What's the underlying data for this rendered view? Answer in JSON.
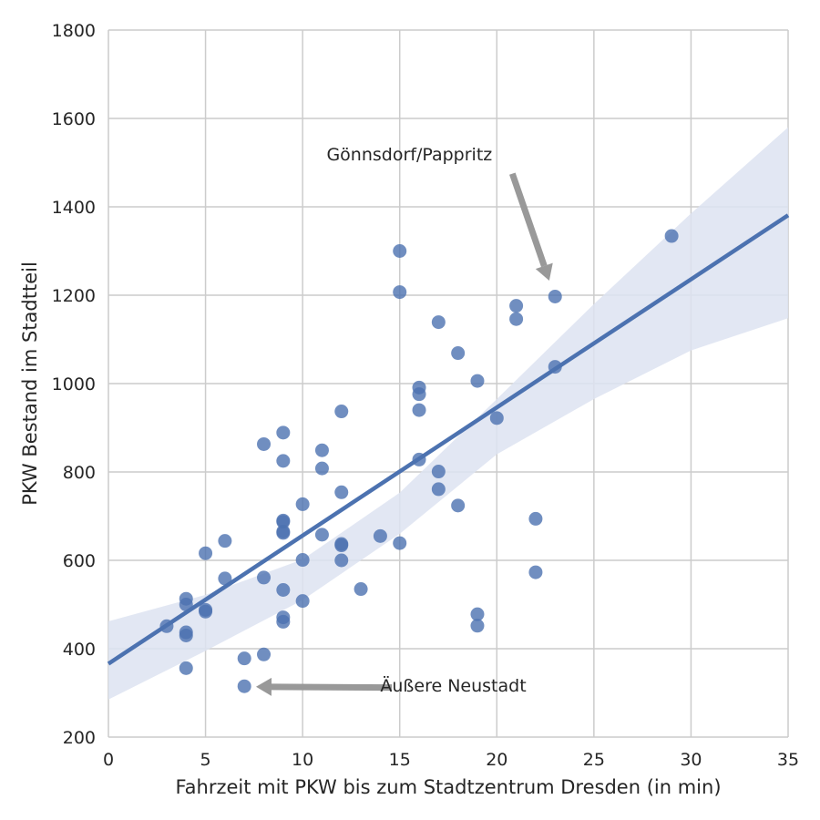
{
  "chart_data": {
    "type": "scatter",
    "title": "",
    "xlabel": "Fahrzeit mit PKW bis zum Stadtzentrum Dresden (in min)",
    "ylabel": "PKW Bestand im Stadtteil",
    "xlim": [
      0,
      35
    ],
    "ylim": [
      200,
      1800
    ],
    "xticks": [
      0,
      5,
      10,
      15,
      20,
      25,
      30,
      35
    ],
    "yticks": [
      200,
      400,
      600,
      800,
      1000,
      1200,
      1400,
      1600,
      1800
    ],
    "grid": true,
    "colors": {
      "points": "#4c72b0",
      "line": "#4c72b0",
      "band": "#dde3f1",
      "arrow": "#999999",
      "grid": "#cccccc",
      "text": "#262626"
    },
    "points": [
      {
        "x": 3,
        "y": 451
      },
      {
        "x": 4,
        "y": 513
      },
      {
        "x": 4,
        "y": 500
      },
      {
        "x": 4,
        "y": 437
      },
      {
        "x": 4,
        "y": 430
      },
      {
        "x": 4,
        "y": 356
      },
      {
        "x": 5,
        "y": 616
      },
      {
        "x": 5,
        "y": 488
      },
      {
        "x": 5,
        "y": 484
      },
      {
        "x": 6,
        "y": 644
      },
      {
        "x": 6,
        "y": 559
      },
      {
        "x": 7,
        "y": 378
      },
      {
        "x": 7,
        "y": 315
      },
      {
        "x": 8,
        "y": 863
      },
      {
        "x": 8,
        "y": 561
      },
      {
        "x": 8,
        "y": 387
      },
      {
        "x": 9,
        "y": 889
      },
      {
        "x": 9,
        "y": 825
      },
      {
        "x": 9,
        "y": 690
      },
      {
        "x": 9,
        "y": 687
      },
      {
        "x": 9,
        "y": 665
      },
      {
        "x": 9,
        "y": 662
      },
      {
        "x": 9,
        "y": 533
      },
      {
        "x": 9,
        "y": 471
      },
      {
        "x": 9,
        "y": 461
      },
      {
        "x": 10,
        "y": 727
      },
      {
        "x": 10,
        "y": 601
      },
      {
        "x": 10,
        "y": 508
      },
      {
        "x": 11,
        "y": 849
      },
      {
        "x": 11,
        "y": 808
      },
      {
        "x": 11,
        "y": 658
      },
      {
        "x": 12,
        "y": 937
      },
      {
        "x": 12,
        "y": 754
      },
      {
        "x": 12,
        "y": 637
      },
      {
        "x": 12,
        "y": 634
      },
      {
        "x": 12,
        "y": 600
      },
      {
        "x": 13,
        "y": 535
      },
      {
        "x": 14,
        "y": 655
      },
      {
        "x": 15,
        "y": 1300
      },
      {
        "x": 15,
        "y": 1207
      },
      {
        "x": 15,
        "y": 639
      },
      {
        "x": 16,
        "y": 991
      },
      {
        "x": 16,
        "y": 976
      },
      {
        "x": 16,
        "y": 940
      },
      {
        "x": 16,
        "y": 828
      },
      {
        "x": 17,
        "y": 1139
      },
      {
        "x": 17,
        "y": 801
      },
      {
        "x": 17,
        "y": 761
      },
      {
        "x": 18,
        "y": 1069
      },
      {
        "x": 18,
        "y": 724
      },
      {
        "x": 19,
        "y": 1006
      },
      {
        "x": 19,
        "y": 478
      },
      {
        "x": 19,
        "y": 452
      },
      {
        "x": 20,
        "y": 922
      },
      {
        "x": 21,
        "y": 1176
      },
      {
        "x": 21,
        "y": 1146
      },
      {
        "x": 22,
        "y": 694
      },
      {
        "x": 22,
        "y": 573
      },
      {
        "x": 23,
        "y": 1197
      },
      {
        "x": 23,
        "y": 1038
      },
      {
        "x": 29,
        "y": 1334
      }
    ],
    "regression": {
      "line": [
        [
          0,
          366
        ],
        [
          35,
          1381
        ]
      ],
      "band_upper": [
        [
          0,
          462
        ],
        [
          5,
          522
        ],
        [
          10,
          602
        ],
        [
          15,
          753
        ],
        [
          20,
          965
        ],
        [
          25,
          1180
        ],
        [
          30,
          1385
        ],
        [
          35,
          1580
        ]
      ],
      "band_lower": [
        [
          0,
          285
        ],
        [
          5,
          395
        ],
        [
          10,
          510
        ],
        [
          15,
          660
        ],
        [
          20,
          840
        ],
        [
          25,
          965
        ],
        [
          30,
          1075
        ],
        [
          35,
          1148
        ]
      ]
    },
    "annotations": [
      {
        "text": "Gönnsdorf/Pappritz",
        "text_at": [
          15.5,
          1505
        ],
        "arrow_from": [
          20.8,
          1475
        ],
        "arrow_to": [
          22.7,
          1233
        ]
      },
      {
        "text": "Äußere Neustadt",
        "text_at": [
          14.0,
          303
        ],
        "arrow_from": [
          14.6,
          312
        ],
        "arrow_to": [
          7.6,
          314
        ]
      }
    ]
  }
}
